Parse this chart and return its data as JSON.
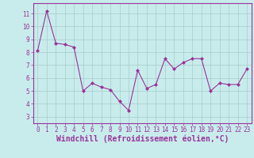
{
  "x": [
    0,
    1,
    2,
    3,
    4,
    5,
    6,
    7,
    8,
    9,
    10,
    11,
    12,
    13,
    14,
    15,
    16,
    17,
    18,
    19,
    20,
    21,
    22,
    23
  ],
  "y": [
    8.1,
    11.2,
    8.7,
    8.6,
    8.4,
    5.0,
    5.6,
    5.3,
    5.1,
    4.2,
    3.5,
    6.6,
    5.2,
    5.5,
    7.5,
    6.7,
    7.2,
    7.5,
    7.5,
    5.0,
    5.6,
    5.5,
    5.5,
    6.7
  ],
  "line_color": "#993399",
  "marker": "D",
  "marker_size": 2,
  "bg_color": "#c8ecec",
  "grid_color": "#a8cccc",
  "xlabel": "Windchill (Refroidissement éolien,°C)",
  "ylim": [
    2.5,
    11.8
  ],
  "yticks": [
    3,
    4,
    5,
    6,
    7,
    8,
    9,
    10,
    11
  ],
  "xticks": [
    0,
    1,
    2,
    3,
    4,
    5,
    6,
    7,
    8,
    9,
    10,
    11,
    12,
    13,
    14,
    15,
    16,
    17,
    18,
    19,
    20,
    21,
    22,
    23
  ],
  "font_color": "#993399",
  "tick_fontsize": 5.5,
  "label_fontsize": 7.0,
  "spine_color": "#993399"
}
